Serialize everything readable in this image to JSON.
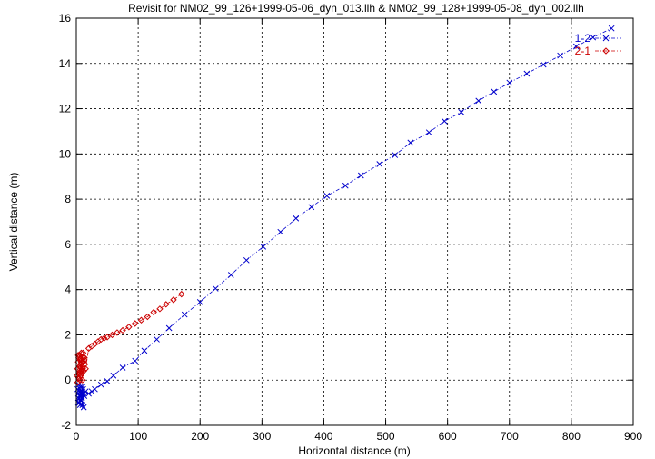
{
  "chart_data": {
    "type": "line",
    "title": "Revisit for NM02_99_126+1999-05-06_dyn_013.llh & NM02_99_128+1999-05-08_dyn_002.llh",
    "xlabel": "Horizontal distance (m)",
    "ylabel": "Vertical distance (m)",
    "xlim": [
      0,
      900
    ],
    "ylim": [
      -2,
      16
    ],
    "xticks": [
      "0",
      "100",
      "200",
      "300",
      "400",
      "500",
      "600",
      "700",
      "800",
      "900"
    ],
    "yticks": [
      "-2",
      "0",
      "2",
      "4",
      "6",
      "8",
      "10",
      "12",
      "14",
      "16"
    ],
    "grid": true,
    "legend_position": "top-right",
    "series": [
      {
        "name": "1-2",
        "color": "#0000cc",
        "marker": "x",
        "x": [
          2,
          3,
          4,
          5,
          6,
          7,
          8,
          9,
          10,
          11,
          4,
          6,
          8,
          10,
          12,
          5,
          7,
          9,
          3,
          6,
          8,
          11,
          13,
          15,
          20,
          25,
          30,
          40,
          50,
          60,
          75,
          95,
          110,
          130,
          150,
          175,
          200,
          225,
          250,
          275,
          302,
          330,
          355,
          380,
          405,
          435,
          460,
          490,
          515,
          540,
          570,
          595,
          622,
          650,
          675,
          700,
          728,
          755,
          782,
          808,
          835,
          865
        ],
        "y": [
          -0.4,
          -0.6,
          -0.8,
          -1.0,
          -1.1,
          -0.9,
          -0.7,
          -0.5,
          -0.3,
          -0.6,
          -0.2,
          -0.4,
          -0.9,
          -1.1,
          -1.2,
          -0.7,
          -0.3,
          -0.8,
          -1.0,
          -0.5,
          -0.6,
          -0.4,
          -0.7,
          -0.5,
          -0.6,
          -0.5,
          -0.4,
          -0.2,
          -0.05,
          0.2,
          0.55,
          0.85,
          1.3,
          1.8,
          2.3,
          2.9,
          3.45,
          4.05,
          4.65,
          5.3,
          5.9,
          6.55,
          7.15,
          7.65,
          8.15,
          8.6,
          9.05,
          9.55,
          9.95,
          10.5,
          10.95,
          11.45,
          11.85,
          12.35,
          12.75,
          13.15,
          13.55,
          13.95,
          14.35,
          14.75,
          15.15,
          15.55
        ]
      },
      {
        "name": "2-1",
        "color": "#cc0000",
        "marker": "diamond",
        "x": [
          1,
          2,
          3,
          4,
          5,
          6,
          7,
          8,
          9,
          10,
          11,
          12,
          13,
          14,
          15,
          2,
          4,
          6,
          8,
          10,
          12,
          3,
          5,
          7,
          9,
          11,
          13,
          6,
          8,
          10,
          20,
          25,
          30,
          35,
          40,
          45,
          50,
          58,
          66,
          75,
          85,
          95,
          105,
          115,
          125,
          135,
          145,
          157,
          170
        ],
        "y": [
          0.2,
          0.5,
          0.8,
          1.0,
          1.1,
          0.9,
          0.7,
          0.4,
          0.3,
          0.6,
          0.8,
          1.0,
          0.9,
          0.7,
          0.5,
          -0.1,
          0.1,
          0.3,
          1.2,
          0.0,
          0.4,
          1.1,
          0.6,
          0.2,
          0.9,
          1.2,
          1.0,
          0.0,
          0.8,
          0.5,
          1.4,
          1.5,
          1.6,
          1.7,
          1.8,
          1.85,
          1.9,
          2.0,
          2.1,
          2.2,
          2.35,
          2.5,
          2.65,
          2.8,
          3.0,
          3.15,
          3.35,
          3.55,
          3.8
        ]
      }
    ]
  }
}
